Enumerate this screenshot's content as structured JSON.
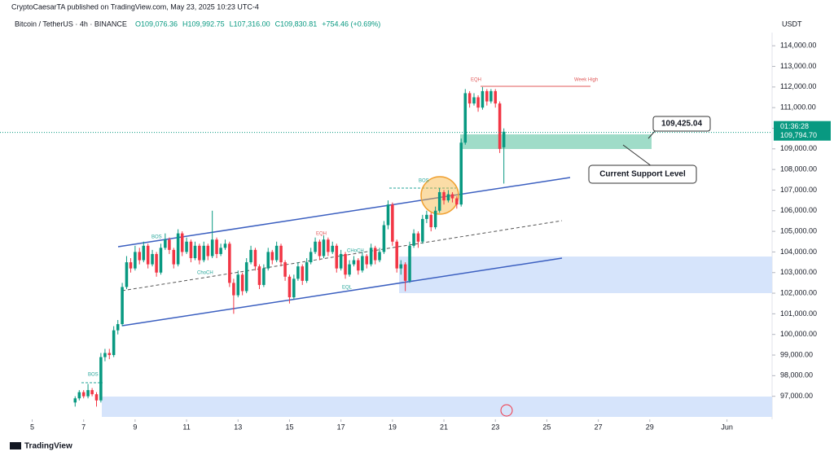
{
  "header": {
    "published": "CryptoCaesarTA published on TradingView.com, May 23, 2025 10:23 UTC-4",
    "symbol": "Bitcoin / TetherUS · 4h · BINANCE",
    "ohlc": [
      "O109,076.36",
      "H109,992.75",
      "L107,316.00",
      "C109,830.81",
      "+754.46 (+0.69%)"
    ]
  },
  "footer": {
    "brand": "TradingView"
  },
  "chart_data": {
    "type": "candlestick",
    "axis_unit": "USDT",
    "up_color": "#089981",
    "down_color": "#f23645",
    "xlim": [
      3.75,
      33.5
    ],
    "xticks": [
      5,
      7,
      9,
      11,
      13,
      15,
      17,
      19,
      21,
      23,
      25,
      27,
      29,
      {
        "value": 32,
        "label": "Jun"
      }
    ],
    "ylim": [
      96000,
      114600
    ],
    "yticks": [
      {
        "value": 97000,
        "label": "97,000.00"
      },
      {
        "value": 98000,
        "label": "98,000.00"
      },
      {
        "value": 99000,
        "label": "99,000.00"
      },
      {
        "value": 100000,
        "label": "100,000.00"
      },
      {
        "value": 101000,
        "label": "101,000.00"
      },
      {
        "value": 102000,
        "label": "102,000.00"
      },
      {
        "value": 103000,
        "label": "103,000.00"
      },
      {
        "value": 104000,
        "label": "104,000.00"
      },
      {
        "value": 105000,
        "label": "105,000.00"
      },
      {
        "value": 106000,
        "label": "106,000.00"
      },
      {
        "value": 107000,
        "label": "107,000.00"
      },
      {
        "value": 108000,
        "label": "108,000.00"
      },
      {
        "value": 109000,
        "label": "109,000.00"
      },
      {
        "value": 110000,
        "label": "110,000.00"
      },
      {
        "value": 111000,
        "label": "111,000.00"
      },
      {
        "value": 112000,
        "label": "112,000.00"
      },
      {
        "value": 113000,
        "label": "113,000.00"
      },
      {
        "value": 114000,
        "label": "114,000.00"
      }
    ],
    "last_price": {
      "value": 109794.7,
      "label": "109,794.70"
    },
    "countdown": "01:36:28",
    "annotations": [
      "Week High",
      "EQH",
      "BOS",
      "ChoCH",
      "EQH",
      "CHoCH",
      "EQL",
      "BOS",
      "BOS",
      "109,425.04",
      "Current Support Level"
    ],
    "x": [
      6.67,
      6.83,
      7,
      7.17,
      7.33,
      7.5,
      7.67,
      7.83,
      8,
      8.17,
      8.33,
      8.5,
      8.67,
      8.83,
      9,
      9.17,
      9.33,
      9.5,
      9.67,
      9.83,
      10,
      10.17,
      10.33,
      10.5,
      10.67,
      10.83,
      11,
      11.17,
      11.33,
      11.5,
      11.67,
      11.83,
      12,
      12.17,
      12.33,
      12.5,
      12.67,
      12.83,
      13,
      13.17,
      13.33,
      13.5,
      13.67,
      13.83,
      14,
      14.17,
      14.33,
      14.5,
      14.67,
      14.83,
      15,
      15.17,
      15.33,
      15.5,
      15.67,
      15.83,
      16,
      16.17,
      16.33,
      16.5,
      16.67,
      16.83,
      17,
      17.17,
      17.33,
      17.5,
      17.67,
      17.83,
      18,
      18.17,
      18.33,
      18.5,
      18.67,
      18.83,
      19,
      19.17,
      19.33,
      19.5,
      19.67,
      19.83,
      20,
      20.17,
      20.33,
      20.5,
      20.67,
      20.83,
      21,
      21.17,
      21.33,
      21.5,
      21.67,
      21.83,
      22,
      22.17,
      22.33,
      22.5,
      22.67,
      22.83,
      23,
      23.17,
      23.33
    ],
    "ohlc": [
      [
        96700,
        97000,
        96500,
        96900
      ],
      [
        96900,
        97300,
        96800,
        97200
      ],
      [
        97200,
        97300,
        96900,
        97000
      ],
      [
        97000,
        97600,
        96900,
        97300
      ],
      [
        97300,
        97400,
        97000,
        97100
      ],
      [
        97100,
        97200,
        96500,
        96800
      ],
      [
        96800,
        99100,
        96700,
        98900
      ],
      [
        98900,
        99300,
        98700,
        99100
      ],
      [
        99100,
        99300,
        98800,
        99000
      ],
      [
        99000,
        100400,
        98900,
        100200
      ],
      [
        100200,
        100700,
        100000,
        100500
      ],
      [
        100500,
        102500,
        100400,
        102300
      ],
      [
        102300,
        103800,
        102200,
        103500
      ],
      [
        103500,
        103700,
        103000,
        103200
      ],
      [
        103200,
        104300,
        103100,
        104000
      ],
      [
        104000,
        104200,
        103400,
        103600
      ],
      [
        103600,
        104500,
        103500,
        104300
      ],
      [
        104300,
        104400,
        103200,
        103400
      ],
      [
        103400,
        104100,
        103300,
        103900
      ],
      [
        103900,
        104000,
        102800,
        103000
      ],
      [
        103000,
        104400,
        102900,
        104200
      ],
      [
        104200,
        104900,
        104100,
        104600
      ],
      [
        104600,
        104700,
        103900,
        104100
      ],
      [
        104100,
        104200,
        103200,
        103400
      ],
      [
        103400,
        105100,
        103300,
        104900
      ],
      [
        104900,
        105000,
        103800,
        104000
      ],
      [
        104000,
        104700,
        103900,
        104500
      ],
      [
        104500,
        104600,
        103500,
        103700
      ],
      [
        103700,
        104500,
        103600,
        104300
      ],
      [
        104300,
        104400,
        103400,
        103600
      ],
      [
        103600,
        104500,
        103500,
        104300
      ],
      [
        104300,
        104400,
        103600,
        103800
      ],
      [
        103800,
        106000,
        103700,
        104600
      ],
      [
        104600,
        104700,
        103700,
        103900
      ],
      [
        103900,
        104400,
        103800,
        104200
      ],
      [
        104200,
        104600,
        104100,
        104400
      ],
      [
        104400,
        104500,
        102300,
        102500
      ],
      [
        102500,
        102700,
        101000,
        101900
      ],
      [
        101900,
        103100,
        101800,
        102900
      ],
      [
        102900,
        103000,
        101900,
        102100
      ],
      [
        102100,
        103700,
        102000,
        103500
      ],
      [
        103500,
        104300,
        103400,
        104100
      ],
      [
        104100,
        104200,
        103100,
        103300
      ],
      [
        103300,
        103400,
        102200,
        102400
      ],
      [
        102400,
        103400,
        102300,
        103200
      ],
      [
        103200,
        104200,
        103100,
        104000
      ],
      [
        104000,
        104100,
        103400,
        103600
      ],
      [
        103600,
        104500,
        103500,
        104300
      ],
      [
        104300,
        104400,
        103300,
        103500
      ],
      [
        103500,
        103600,
        102600,
        102800
      ],
      [
        102800,
        102900,
        101500,
        101800
      ],
      [
        101800,
        102900,
        101700,
        102700
      ],
      [
        102700,
        103500,
        102600,
        103300
      ],
      [
        103300,
        103400,
        102400,
        102600
      ],
      [
        102600,
        103700,
        102500,
        103500
      ],
      [
        103500,
        104200,
        103400,
        104000
      ],
      [
        104000,
        104700,
        103900,
        104500
      ],
      [
        104500,
        104600,
        103600,
        103800
      ],
      [
        103800,
        104800,
        103700,
        104600
      ],
      [
        104600,
        104700,
        103800,
        104000
      ],
      [
        104000,
        104500,
        103900,
        104300
      ],
      [
        104300,
        104400,
        103000,
        103200
      ],
      [
        103200,
        104100,
        103100,
        103900
      ],
      [
        103900,
        104000,
        102700,
        102900
      ],
      [
        102900,
        103600,
        102800,
        103400
      ],
      [
        103400,
        103800,
        103300,
        103600
      ],
      [
        103600,
        103700,
        102900,
        103100
      ],
      [
        103100,
        104000,
        103000,
        103800
      ],
      [
        103800,
        103900,
        103200,
        103400
      ],
      [
        103400,
        104400,
        103300,
        104200
      ],
      [
        104200,
        104300,
        103400,
        103600
      ],
      [
        103600,
        104200,
        103500,
        104000
      ],
      [
        104000,
        105500,
        103900,
        105300
      ],
      [
        105300,
        106500,
        105100,
        106300
      ],
      [
        106300,
        106400,
        104300,
        104500
      ],
      [
        104500,
        104600,
        103000,
        103200
      ],
      [
        103200,
        103600,
        102900,
        103400
      ],
      [
        103400,
        103500,
        102100,
        102600
      ],
      [
        102600,
        104500,
        102500,
        104300
      ],
      [
        104300,
        105100,
        104200,
        104900
      ],
      [
        104900,
        105000,
        104200,
        104500
      ],
      [
        104500,
        105800,
        104400,
        105600
      ],
      [
        105600,
        106000,
        105400,
        105800
      ],
      [
        105800,
        105900,
        105000,
        105200
      ],
      [
        105200,
        106200,
        105100,
        106000
      ],
      [
        106000,
        107100,
        105900,
        106900
      ],
      [
        106900,
        107000,
        106300,
        106500
      ],
      [
        106500,
        107000,
        106400,
        106800
      ],
      [
        106800,
        106900,
        106400,
        106600
      ],
      [
        106600,
        106700,
        106100,
        106300
      ],
      [
        106300,
        109500,
        106200,
        109300
      ],
      [
        109300,
        111900,
        109200,
        111700
      ],
      [
        111700,
        111800,
        111000,
        111200
      ],
      [
        111200,
        111700,
        111100,
        111500
      ],
      [
        111500,
        111600,
        110800,
        111000
      ],
      [
        111000,
        112000,
        110900,
        111800
      ],
      [
        111800,
        111900,
        111100,
        111300
      ],
      [
        111300,
        111900,
        111200,
        111800
      ],
      [
        111800,
        111900,
        111000,
        111200
      ],
      [
        111200,
        111300,
        108800,
        109000
      ],
      [
        109076.36,
        109992.75,
        107316,
        109830.81
      ]
    ]
  }
}
